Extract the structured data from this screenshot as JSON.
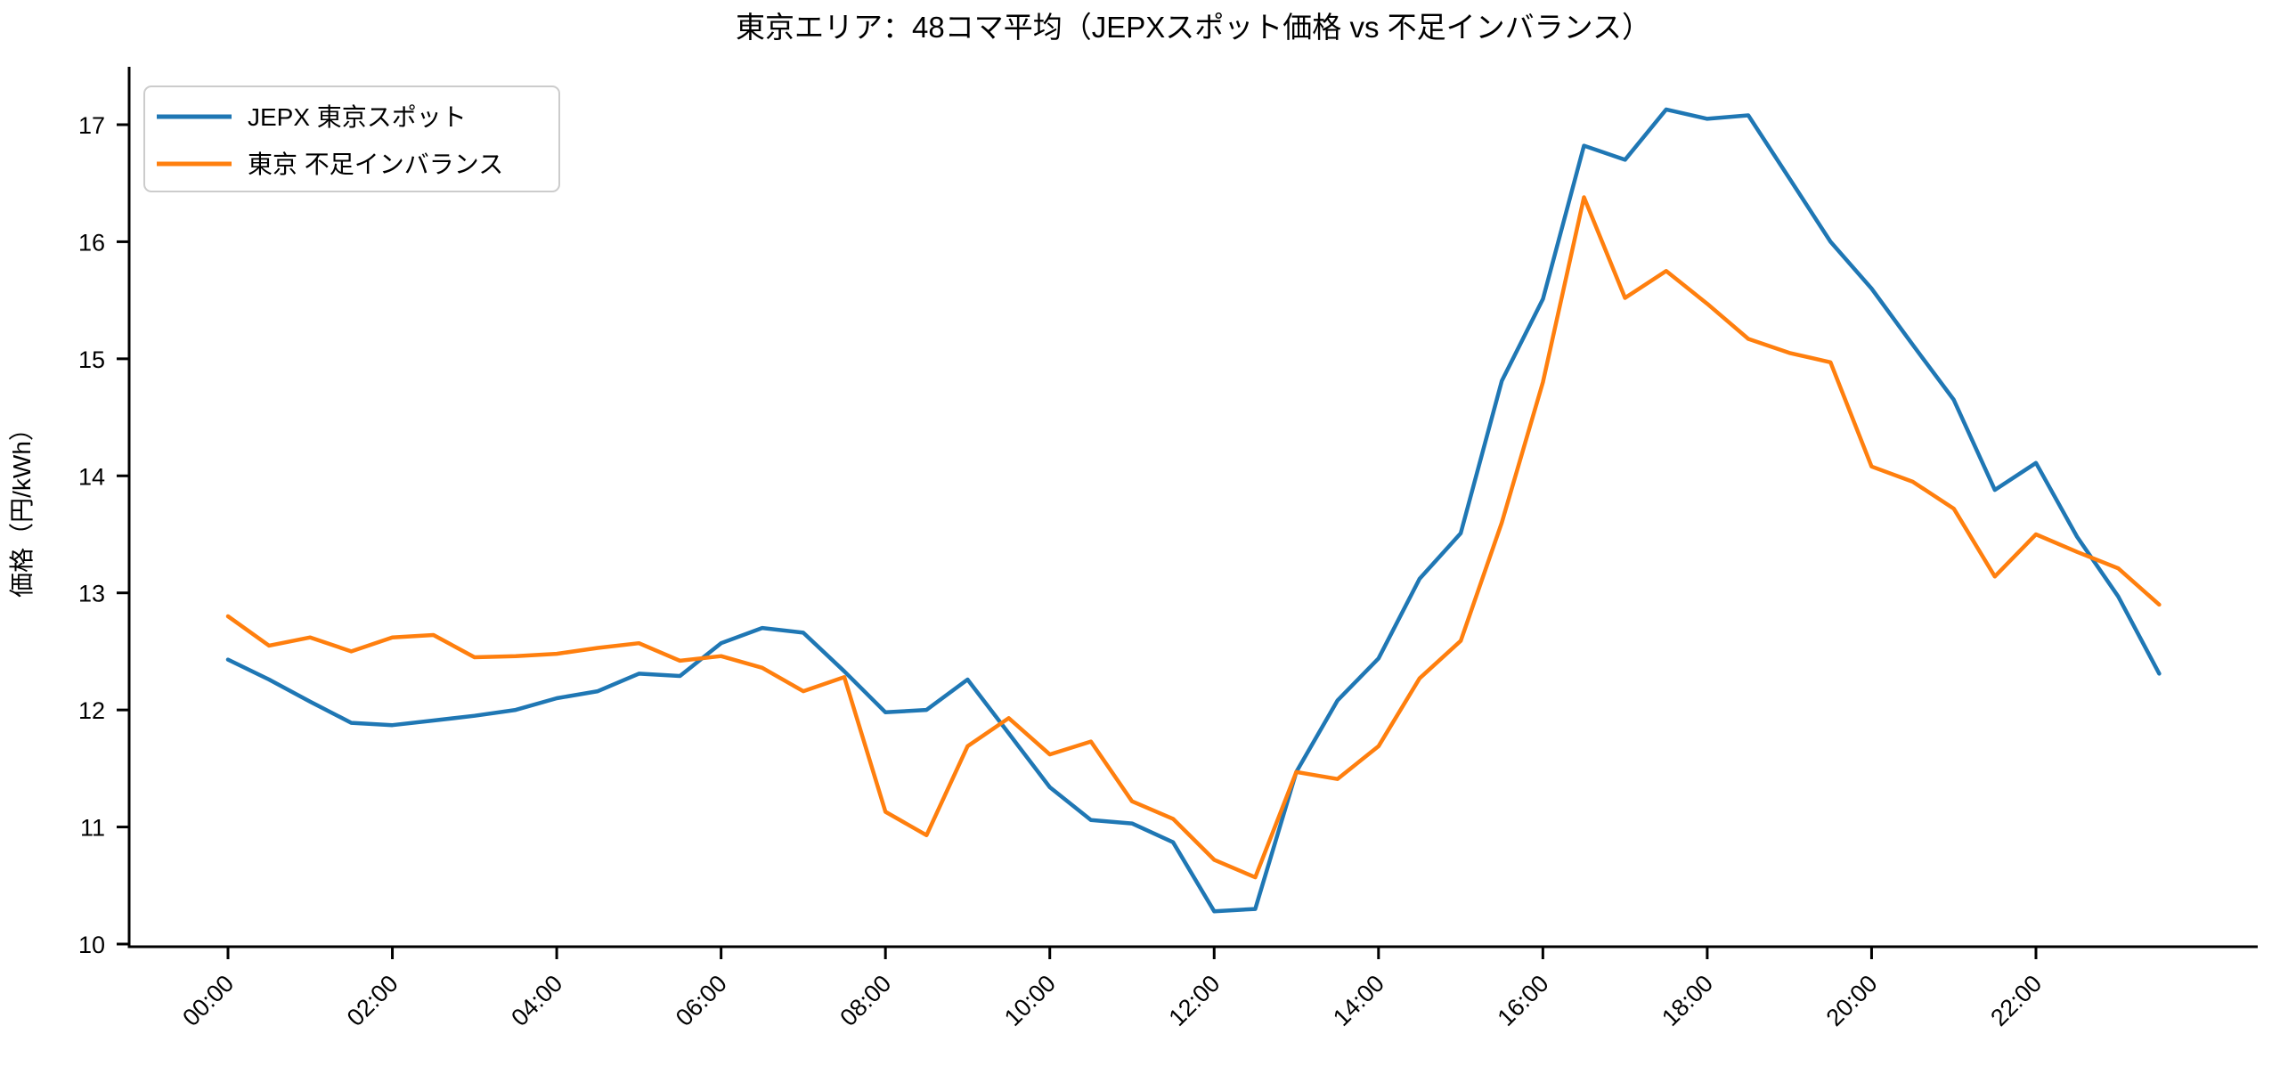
{
  "title": "東京エリア：48コマ平均（JEPXスポット価格 vs 不足インバランス）",
  "y_axis": {
    "label": "価格（円/kWh）",
    "ticks": [
      "10",
      "11",
      "12",
      "13",
      "14",
      "15",
      "16",
      "17"
    ]
  },
  "x_axis": {
    "tick_labels": [
      "00:00",
      "02:00",
      "04:00",
      "06:00",
      "08:00",
      "10:00",
      "12:00",
      "14:00",
      "16:00",
      "18:00",
      "20:00",
      "22:00"
    ]
  },
  "legend": {
    "items": [
      {
        "label": "JEPX 東京スポット",
        "color": "#1f77b4"
      },
      {
        "label": "東京 不足インバランス",
        "color": "#ff7f0e"
      }
    ]
  },
  "chart_data": {
    "type": "line",
    "title": "東京エリア：48コマ平均（JEPXスポット価格 vs 不足インバランス）",
    "xlabel": "",
    "ylabel": "価格（円/kWh）",
    "ylim": [
      9.98,
      17.49
    ],
    "grid": false,
    "legend_position": "upper left",
    "x": [
      "00:00",
      "00:30",
      "01:00",
      "01:30",
      "02:00",
      "02:30",
      "03:00",
      "03:30",
      "04:00",
      "04:30",
      "05:00",
      "05:30",
      "06:00",
      "06:30",
      "07:00",
      "07:30",
      "08:00",
      "08:30",
      "09:00",
      "09:30",
      "10:00",
      "10:30",
      "11:00",
      "11:30",
      "12:00",
      "12:30",
      "13:00",
      "13:30",
      "14:00",
      "14:30",
      "15:00",
      "15:30",
      "16:00",
      "16:30",
      "17:00",
      "17:30",
      "18:00",
      "18:30",
      "19:00",
      "19:30",
      "20:00",
      "20:30",
      "21:00",
      "21:30",
      "22:00",
      "22:30",
      "23:00",
      "23:30"
    ],
    "x_tick_labels": [
      "00:00",
      "02:00",
      "04:00",
      "06:00",
      "08:00",
      "10:00",
      "12:00",
      "14:00",
      "16:00",
      "18:00",
      "20:00",
      "22:00"
    ],
    "series": [
      {
        "name": "JEPX 東京スポット",
        "color": "#1f77b4",
        "values": [
          12.43,
          12.26,
          12.07,
          11.89,
          11.87,
          11.91,
          11.95,
          12.0,
          12.1,
          12.16,
          12.31,
          12.29,
          12.57,
          12.7,
          12.66,
          12.33,
          11.98,
          12.0,
          12.26,
          11.8,
          11.34,
          11.06,
          11.03,
          10.87,
          10.28,
          10.3,
          11.47,
          12.08,
          12.44,
          13.12,
          13.51,
          14.81,
          15.51,
          16.82,
          16.7,
          17.13,
          17.05,
          17.08,
          16.54,
          16.0,
          15.6,
          15.12,
          14.65,
          13.88,
          14.11,
          13.48,
          12.97,
          12.31
        ]
      },
      {
        "name": "東京 不足インバランス",
        "color": "#ff7f0e",
        "values": [
          12.8,
          12.55,
          12.62,
          12.5,
          12.62,
          12.64,
          12.45,
          12.46,
          12.48,
          12.53,
          12.57,
          12.42,
          12.46,
          12.36,
          12.16,
          12.28,
          11.13,
          10.93,
          11.69,
          11.93,
          11.62,
          11.73,
          11.22,
          11.07,
          10.72,
          10.57,
          11.47,
          11.41,
          11.69,
          12.27,
          12.59,
          13.6,
          14.8,
          16.38,
          15.52,
          15.75,
          15.47,
          15.17,
          15.05,
          14.97,
          14.08,
          13.95,
          13.72,
          13.14,
          13.5,
          13.35,
          13.21,
          12.9
        ]
      }
    ]
  }
}
